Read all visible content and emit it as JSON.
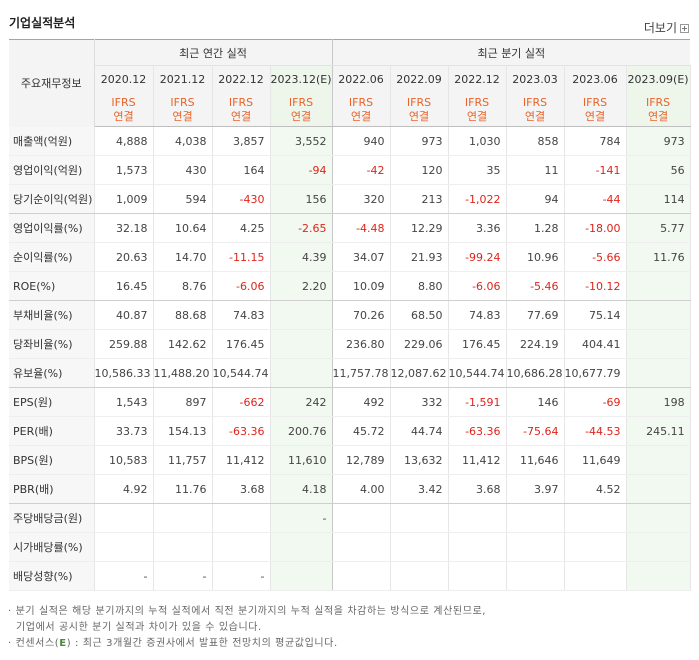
{
  "header": {
    "title": "기업실적분석",
    "more_label": "더보기"
  },
  "table": {
    "corner_label": "주요재무정보",
    "annual_group_label": "최근 연간 실적",
    "quarter_group_label": "최근 분기 실적",
    "periods": [
      "2020.12",
      "2021.12",
      "2022.12",
      "2023.12(E)",
      "2022.06",
      "2022.09",
      "2022.12",
      "2023.03",
      "2023.06",
      "2023.09(E)"
    ],
    "ifrs_top": "IFRS",
    "ifrs_bottom": "연결",
    "rows": [
      {
        "label": "매출액(억원)",
        "values": [
          "4,888",
          "4,038",
          "3,857",
          "3,552",
          "940",
          "973",
          "1,030",
          "858",
          "784",
          "973"
        ]
      },
      {
        "label": "영업이익(억원)",
        "values": [
          "1,573",
          "430",
          "164",
          "-94",
          "-42",
          "120",
          "35",
          "11",
          "-141",
          "56"
        ]
      },
      {
        "label": "당기순이익(억원)",
        "values": [
          "1,009",
          "594",
          "-430",
          "156",
          "320",
          "213",
          "-1,022",
          "94",
          "-44",
          "114"
        ]
      },
      {
        "label": "영업이익률(%)",
        "values": [
          "32.18",
          "10.64",
          "4.25",
          "-2.65",
          "-4.48",
          "12.29",
          "3.36",
          "1.28",
          "-18.00",
          "5.77"
        ]
      },
      {
        "label": "순이익률(%)",
        "values": [
          "20.63",
          "14.70",
          "-11.15",
          "4.39",
          "34.07",
          "21.93",
          "-99.24",
          "10.96",
          "-5.66",
          "11.76"
        ]
      },
      {
        "label": "ROE(%)",
        "values": [
          "16.45",
          "8.76",
          "-6.06",
          "2.20",
          "10.09",
          "8.80",
          "-6.06",
          "-5.46",
          "-10.12",
          ""
        ]
      },
      {
        "label": "부채비율(%)",
        "values": [
          "40.87",
          "88.68",
          "74.83",
          "",
          "70.26",
          "68.50",
          "74.83",
          "77.69",
          "75.14",
          ""
        ]
      },
      {
        "label": "당좌비율(%)",
        "values": [
          "259.88",
          "142.62",
          "176.45",
          "",
          "236.80",
          "229.06",
          "176.45",
          "224.19",
          "404.41",
          ""
        ]
      },
      {
        "label": "유보율(%)",
        "values": [
          "10,586.33",
          "11,488.20",
          "10,544.74",
          "",
          "11,757.78",
          "12,087.62",
          "10,544.74",
          "10,686.28",
          "10,677.79",
          ""
        ]
      },
      {
        "label": "EPS(원)",
        "values": [
          "1,543",
          "897",
          "-662",
          "242",
          "492",
          "332",
          "-1,591",
          "146",
          "-69",
          "198"
        ]
      },
      {
        "label": "PER(배)",
        "values": [
          "33.73",
          "154.13",
          "-63.36",
          "200.76",
          "45.72",
          "44.74",
          "-63.36",
          "-75.64",
          "-44.53",
          "245.11"
        ]
      },
      {
        "label": "BPS(원)",
        "values": [
          "10,583",
          "11,757",
          "11,412",
          "11,610",
          "12,789",
          "13,632",
          "11,412",
          "11,646",
          "11,649",
          ""
        ]
      },
      {
        "label": "PBR(배)",
        "values": [
          "4.92",
          "11.76",
          "3.68",
          "4.18",
          "4.00",
          "3.42",
          "3.68",
          "3.97",
          "4.52",
          ""
        ]
      },
      {
        "label": "주당배당금(원)",
        "values": [
          "",
          "",
          "",
          "-",
          "",
          "",
          "",
          "",
          "",
          ""
        ]
      },
      {
        "label": "시가배당률(%)",
        "values": [
          "",
          "",
          "",
          "",
          "",
          "",
          "",
          "",
          "",
          ""
        ]
      },
      {
        "label": "배당성향(%)",
        "values": [
          "-",
          "-",
          "-",
          "",
          "",
          "",
          "",
          "",
          "",
          ""
        ]
      }
    ]
  },
  "notes": {
    "line1": "분기 실적은 해당 분기까지의 누적 실적에서 직전 분기까지의 누적 실적을 차감하는 방식으로 계산된므로,",
    "line2": "기업에서 공시한 분기 실적과 차이가 있을 수 있습니다.",
    "line3_prefix": "컨센서스(",
    "line3_e": "E",
    "line3_suffix": ") : 최근 3개월간 증권사에서 발표한 전망치의 평균값입니다."
  },
  "colors": {
    "negative": "#e0241b",
    "ifrs": "#e8642a",
    "estimate_bg": "#eef6ec",
    "estimate_label": "#4a8a3c"
  }
}
